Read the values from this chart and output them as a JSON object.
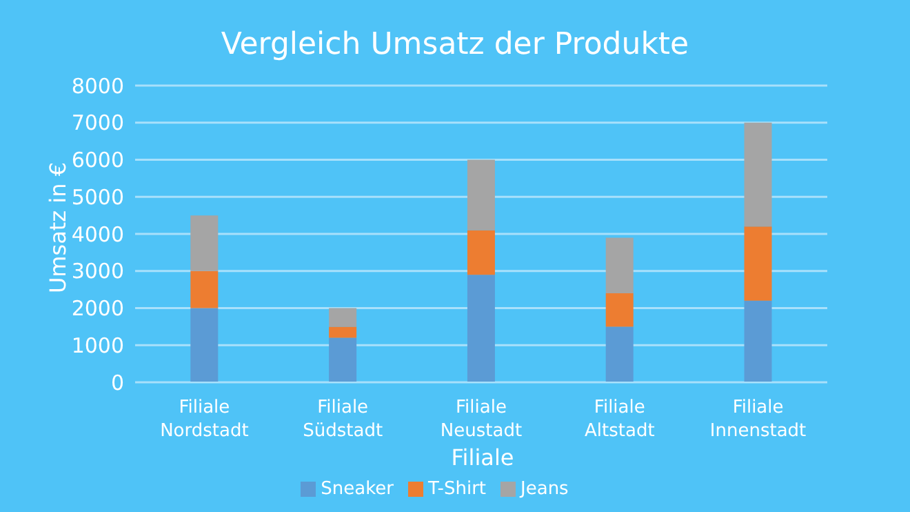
{
  "chart_data": {
    "type": "bar",
    "title": "Vergleich Umsatz der Produkte",
    "xlabel": "Filiale",
    "ylabel": "Umsatz in €",
    "categories": [
      "Filiale Nordstadt",
      "Filiale Südstadt",
      "Filiale Neustadt",
      "Filiale Altstadt",
      "Filiale Innenstadt"
    ],
    "series": [
      {
        "name": "Sneaker",
        "color": "#5b9bd5",
        "values": [
          2000,
          1200,
          2900,
          1500,
          2200
        ]
      },
      {
        "name": "T-Shirt",
        "color": "#ed7d31",
        "values": [
          1000,
          300,
          1200,
          900,
          2000
        ]
      },
      {
        "name": "Jeans",
        "color": "#a5a5a5",
        "values": [
          1500,
          500,
          1900,
          1500,
          2800
        ]
      }
    ],
    "stacked": true,
    "ylim": [
      0,
      8000
    ],
    "yticks": [
      0,
      1000,
      2000,
      3000,
      4000,
      5000,
      6000,
      7000,
      8000
    ],
    "grid": "y",
    "legend": "bottom"
  }
}
